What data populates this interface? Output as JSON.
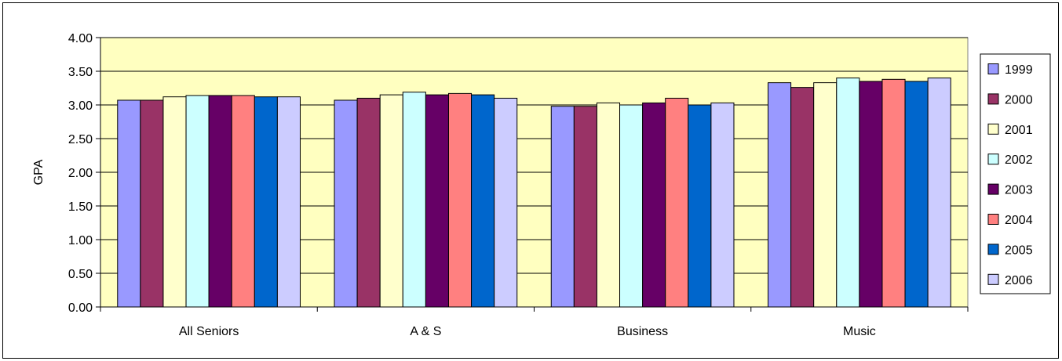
{
  "chart_data": {
    "type": "bar",
    "title": "",
    "xlabel": "",
    "ylabel": "GPA",
    "ylim": [
      0,
      4
    ],
    "yticks": [
      "0.00",
      "0.50",
      "1.00",
      "1.50",
      "2.00",
      "2.50",
      "3.00",
      "3.50",
      "4.00"
    ],
    "categories": [
      "All Seniors",
      "A & S",
      "Business",
      "Music"
    ],
    "grid": true,
    "legend_position": "right",
    "plot_background": "#FFFFC0",
    "series": [
      {
        "name": "1999",
        "color": "#9999FF",
        "values": [
          3.07,
          3.07,
          2.98,
          3.33
        ]
      },
      {
        "name": "2000",
        "color": "#993366",
        "values": [
          3.07,
          3.1,
          2.98,
          3.26
        ]
      },
      {
        "name": "2001",
        "color": "#FFFFCC",
        "values": [
          3.12,
          3.15,
          3.03,
          3.33
        ]
      },
      {
        "name": "2002",
        "color": "#CCFFFF",
        "values": [
          3.14,
          3.19,
          3.0,
          3.4
        ]
      },
      {
        "name": "2003",
        "color": "#660066",
        "values": [
          3.14,
          3.15,
          3.03,
          3.35
        ]
      },
      {
        "name": "2004",
        "color": "#FF8080",
        "values": [
          3.14,
          3.17,
          3.1,
          3.38
        ]
      },
      {
        "name": "2005",
        "color": "#0066CC",
        "values": [
          3.12,
          3.15,
          3.0,
          3.35
        ]
      },
      {
        "name": "2006",
        "color": "#CCCCFF",
        "values": [
          3.12,
          3.1,
          3.03,
          3.4
        ]
      }
    ]
  }
}
